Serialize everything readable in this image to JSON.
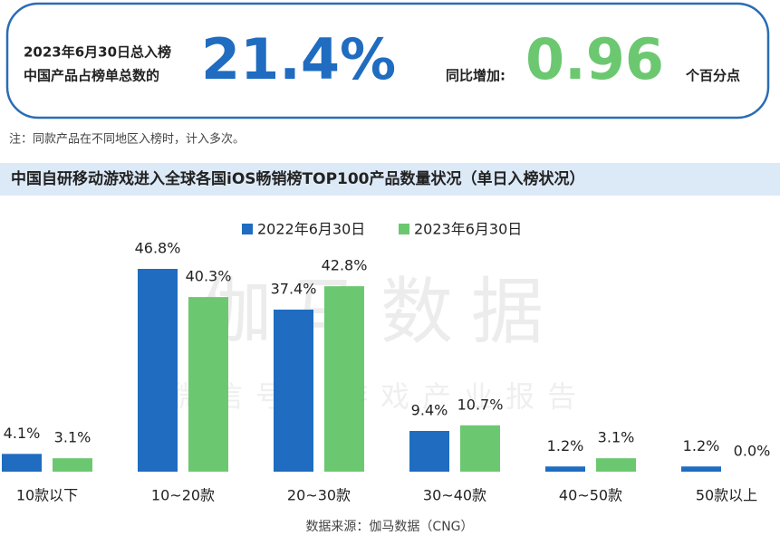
{
  "header": {
    "line1": "2023年6月30日总入榜",
    "line2": "中国产品占榜单总数的",
    "share": "21.4%",
    "increase_label": "同比增加:",
    "increase": "0.96",
    "increase_unit": "个百分点"
  },
  "note": "注：同款产品在不同地区入榜时，计入多次。",
  "watermark": {
    "main": "伽马数据",
    "sub": "微信号：游戏产业报告"
  },
  "source": "数据来源：伽马数据（CNG）",
  "chart_data": {
    "type": "bar",
    "title": "中国自研移动游戏进入全球各国iOS畅销榜TOP100产品数量状况（单日入榜状况）",
    "categories": [
      "10款以下",
      "10~20款",
      "20~30款",
      "30~40款",
      "40~50款",
      "50款以上"
    ],
    "series": [
      {
        "name": "2022年6月30日",
        "color": "#1f6cc0",
        "values": [
          4.1,
          46.8,
          37.4,
          9.4,
          1.2,
          1.2
        ],
        "value_labels": [
          "4.1%",
          "46.8%",
          "37.4%",
          "9.4%",
          "1.2%",
          "1.2%"
        ]
      },
      {
        "name": "2023年6月30日",
        "color": "#6cc870",
        "values": [
          3.1,
          40.3,
          42.8,
          10.7,
          3.1,
          0.0
        ],
        "value_labels": [
          "3.1%",
          "40.3%",
          "42.8%",
          "10.7%",
          "3.1%",
          "0.0%"
        ]
      }
    ],
    "legend": "top"
  }
}
